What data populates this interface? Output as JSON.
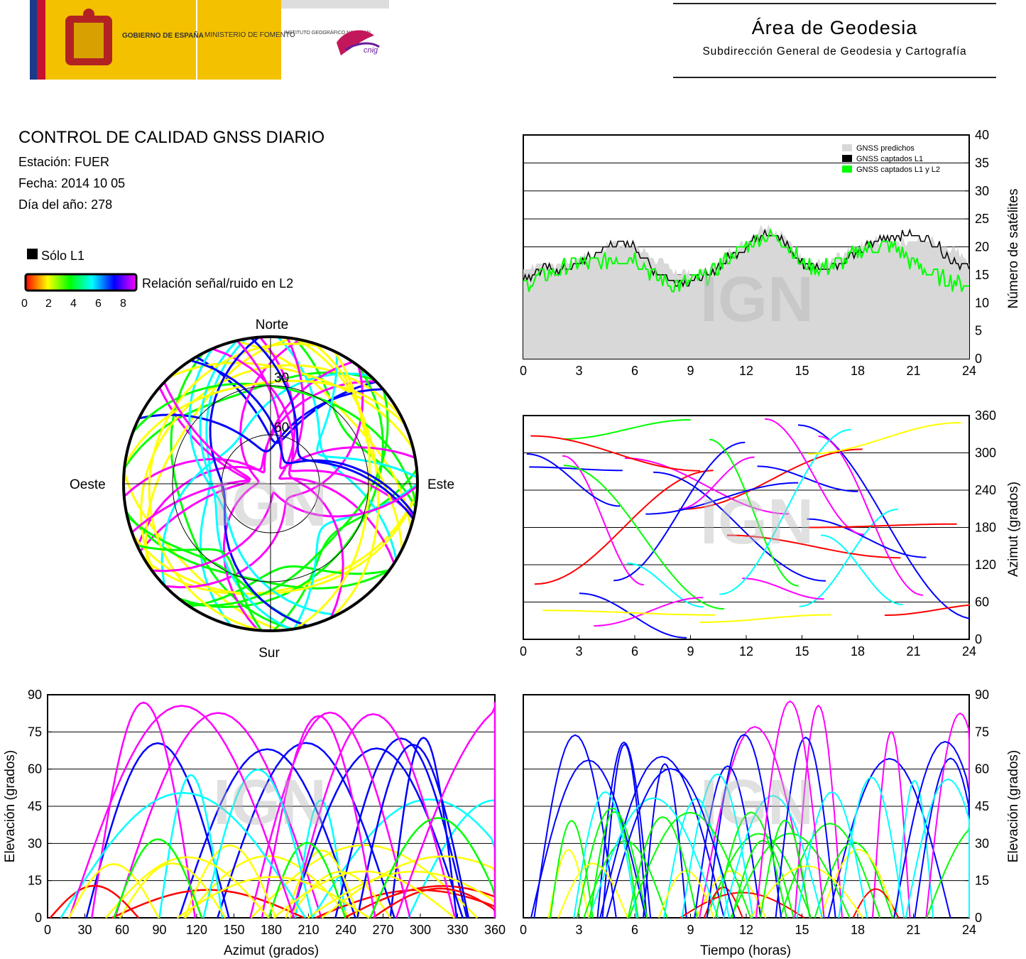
{
  "logos": {
    "gobierno": "GOBIERNO DE ESPAÑA",
    "ministerio": "MINISTERIO DE FOMENTO",
    "instituto": "INSTITUTO GEOGRÁFICO NACIONAL",
    "cnig": "cnig"
  },
  "header": {
    "title": "Área de Geodesia",
    "subtitle": "Subdirección General de Geodesia y Cartografía"
  },
  "info": {
    "title": "CONTROL DE CALIDAD GNSS DIARIO",
    "station": "Estación: FUER",
    "date": "Fecha: 2014 10 05",
    "doy": "Día del año: 278"
  },
  "legend": {
    "l1_only": "Sólo L1",
    "snr": "Relación señal/ruido en L2",
    "ticks": [
      "0",
      "2",
      "4",
      "6",
      "8"
    ]
  },
  "watermark": "IGN",
  "colors": {
    "predicted": "#d8d8d8",
    "l1": "#000000",
    "l1l2": "#00ff00",
    "snr_scale": [
      "#ff0000",
      "#ffff00",
      "#00ff00",
      "#00ffff",
      "#0000ff",
      "#ff00ff"
    ]
  },
  "chart_data": [
    {
      "type": "area",
      "name": "satellites",
      "series": [
        {
          "name": "GNSS predichos",
          "x": [
            0,
            1,
            2,
            3,
            4,
            5,
            6,
            7,
            8,
            9,
            10,
            11,
            12,
            13,
            14,
            15,
            16,
            17,
            18,
            19,
            20,
            21,
            22,
            23,
            24
          ],
          "values": [
            16,
            17,
            17,
            18,
            19,
            21,
            20,
            18,
            16,
            15,
            16,
            19,
            21,
            24,
            22,
            18,
            17,
            18,
            20,
            21,
            21,
            21,
            21,
            20,
            18
          ]
        },
        {
          "name": "GNSS captados L1",
          "x": [
            0,
            1,
            2,
            3,
            4,
            5,
            6,
            7,
            8,
            9,
            10,
            11,
            12,
            13,
            14,
            15,
            16,
            17,
            18,
            19,
            20,
            21,
            22,
            23,
            24
          ],
          "values": [
            14,
            16,
            16,
            17,
            19,
            21,
            20,
            16,
            14,
            14,
            15,
            18,
            20,
            23,
            21,
            17,
            16,
            17,
            19,
            21,
            22,
            22,
            21,
            18,
            16
          ]
        },
        {
          "name": "GNSS captados L1 y L2",
          "x": [
            0,
            1,
            2,
            3,
            4,
            5,
            6,
            7,
            8,
            9,
            10,
            11,
            12,
            13,
            14,
            15,
            16,
            17,
            18,
            19,
            20,
            21,
            22,
            23,
            24
          ],
          "values": [
            13,
            15,
            16,
            17,
            17,
            18,
            18,
            15,
            13,
            14,
            15,
            18,
            20,
            22,
            21,
            17,
            16,
            17,
            19,
            20,
            20,
            17,
            15,
            14,
            13
          ]
        }
      ],
      "xticks": [
        "0",
        "3",
        "6",
        "9",
        "12",
        "15",
        "18",
        "21",
        "24"
      ],
      "yticks": [
        "0",
        "5",
        "10",
        "15",
        "20",
        "25",
        "30",
        "35",
        "40"
      ],
      "xlim": [
        0,
        24
      ],
      "ylim": [
        0,
        40
      ],
      "ylabel": "Número de satélites",
      "legend": "top-right",
      "grid": true
    },
    {
      "type": "scatter",
      "name": "skyplot",
      "labels": {
        "north": "Norte",
        "south": "Sur",
        "east": "Este",
        "west": "Oeste"
      },
      "rings": [
        "30",
        "60"
      ]
    },
    {
      "type": "line",
      "name": "azimuth-vs-time",
      "xticks": [
        "0",
        "3",
        "6",
        "9",
        "12",
        "15",
        "18",
        "21",
        "24"
      ],
      "yticks": [
        "0",
        "60",
        "120",
        "180",
        "240",
        "300",
        "360"
      ],
      "xlim": [
        0,
        24
      ],
      "ylim": [
        0,
        360
      ],
      "ylabel": "Azimut (grados)",
      "grid": true
    },
    {
      "type": "line",
      "name": "elevation-vs-azimuth",
      "xticks": [
        "0",
        "30",
        "60",
        "90",
        "120",
        "150",
        "180",
        "210",
        "240",
        "270",
        "300",
        "330",
        "360"
      ],
      "yticks": [
        "0",
        "15",
        "30",
        "45",
        "60",
        "75",
        "90"
      ],
      "xlim": [
        0,
        360
      ],
      "ylim": [
        0,
        90
      ],
      "xlabel": "Azimut (grados)",
      "ylabel": "Elevación (grados)",
      "grid": true
    },
    {
      "type": "line",
      "name": "elevation-vs-time",
      "xticks": [
        "0",
        "3",
        "6",
        "9",
        "12",
        "15",
        "18",
        "21",
        "24"
      ],
      "yticks": [
        "0",
        "15",
        "30",
        "45",
        "60",
        "75",
        "90"
      ],
      "xlim": [
        0,
        24
      ],
      "ylim": [
        0,
        90
      ],
      "xlabel": "Tiempo (horas)",
      "ylabel": "Elevación (grados)",
      "grid": true
    }
  ]
}
